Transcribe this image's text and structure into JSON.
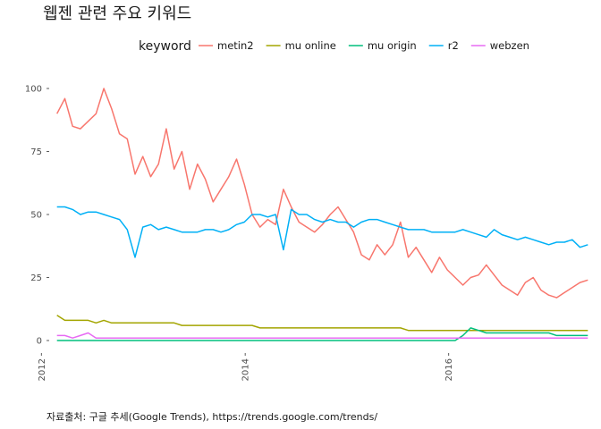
{
  "chart_data": {
    "type": "line",
    "title": "웹젠 관련 주요 키워드",
    "caption": "자료출처: 구글 추세(Google Trends), https://trends.google.com/trends/",
    "legend": {
      "title": "keyword",
      "position": "top"
    },
    "xlabel": "",
    "ylabel": "",
    "xlim": [
      "2012-01-29",
      "2017-03-26"
    ],
    "ylim": [
      0,
      100
    ],
    "x_ticks": [
      "2012",
      "2014",
      "2016"
    ],
    "y_ticks": [
      0,
      25,
      50,
      75,
      100
    ],
    "grid": false,
    "sampling": {
      "start": "2012-02-26",
      "step_weeks": 4
    },
    "series": [
      {
        "name": "metin2",
        "color": "#F8766D",
        "values": [
          90,
          96,
          85,
          84,
          87,
          90,
          100,
          92,
          82,
          80,
          66,
          73,
          65,
          70,
          84,
          68,
          75,
          60,
          70,
          64,
          55,
          60,
          65,
          72,
          62,
          50,
          45,
          48,
          46,
          60,
          53,
          47,
          45,
          43,
          46,
          50,
          53,
          48,
          43,
          34,
          32,
          38,
          34,
          38,
          47,
          33,
          37,
          32,
          27,
          33,
          28,
          25,
          22,
          25,
          26,
          30,
          26,
          22,
          20,
          18,
          23,
          25,
          20,
          18,
          17,
          19,
          21,
          23,
          24
        ]
      },
      {
        "name": "mu online",
        "color": "#A3A500",
        "values": [
          10,
          8,
          8,
          8,
          8,
          7,
          8,
          7,
          7,
          7,
          7,
          7,
          7,
          7,
          7,
          7,
          6,
          6,
          6,
          6,
          6,
          6,
          6,
          6,
          6,
          6,
          5,
          5,
          5,
          5,
          5,
          5,
          5,
          5,
          5,
          5,
          5,
          5,
          5,
          5,
          5,
          5,
          5,
          5,
          5,
          4,
          4,
          4,
          4,
          4,
          4,
          4,
          4,
          4,
          4,
          4,
          4,
          4,
          4,
          4,
          4,
          4,
          4,
          4,
          4,
          4,
          4,
          4,
          4
        ]
      },
      {
        "name": "mu origin",
        "color": "#00BF7D",
        "values": [
          0,
          0,
          0,
          0,
          0,
          0,
          0,
          0,
          0,
          0,
          0,
          0,
          0,
          0,
          0,
          0,
          0,
          0,
          0,
          0,
          0,
          0,
          0,
          0,
          0,
          0,
          0,
          0,
          0,
          0,
          0,
          0,
          0,
          0,
          0,
          0,
          0,
          0,
          0,
          0,
          0,
          0,
          0,
          0,
          0,
          0,
          0,
          0,
          0,
          0,
          0,
          0,
          2,
          5,
          4,
          3,
          3,
          3,
          3,
          3,
          3,
          3,
          3,
          3,
          2,
          2,
          2,
          2,
          2
        ]
      },
      {
        "name": "r2",
        "color": "#00B0F6",
        "values": [
          53,
          53,
          52,
          50,
          51,
          51,
          50,
          49,
          48,
          44,
          33,
          45,
          46,
          44,
          45,
          44,
          43,
          43,
          43,
          44,
          44,
          43,
          44,
          46,
          47,
          50,
          50,
          49,
          50,
          36,
          52,
          50,
          50,
          48,
          47,
          48,
          47,
          47,
          45,
          47,
          48,
          48,
          47,
          46,
          45,
          44,
          44,
          44,
          43,
          43,
          43,
          43,
          44,
          43,
          42,
          41,
          44,
          42,
          41,
          40,
          41,
          40,
          39,
          38,
          39,
          39,
          40,
          37,
          38
        ]
      },
      {
        "name": "webzen",
        "color": "#E76BF3",
        "values": [
          2,
          2,
          1,
          2,
          3,
          1,
          1,
          1,
          1,
          1,
          1,
          1,
          1,
          1,
          1,
          1,
          1,
          1,
          1,
          1,
          1,
          1,
          1,
          1,
          1,
          1,
          1,
          1,
          1,
          1,
          1,
          1,
          1,
          1,
          1,
          1,
          1,
          1,
          1,
          1,
          1,
          1,
          1,
          1,
          1,
          1,
          1,
          1,
          1,
          1,
          1,
          1,
          1,
          1,
          1,
          1,
          1,
          1,
          1,
          1,
          1,
          1,
          1,
          1,
          1,
          1,
          1,
          1,
          1
        ]
      }
    ]
  }
}
